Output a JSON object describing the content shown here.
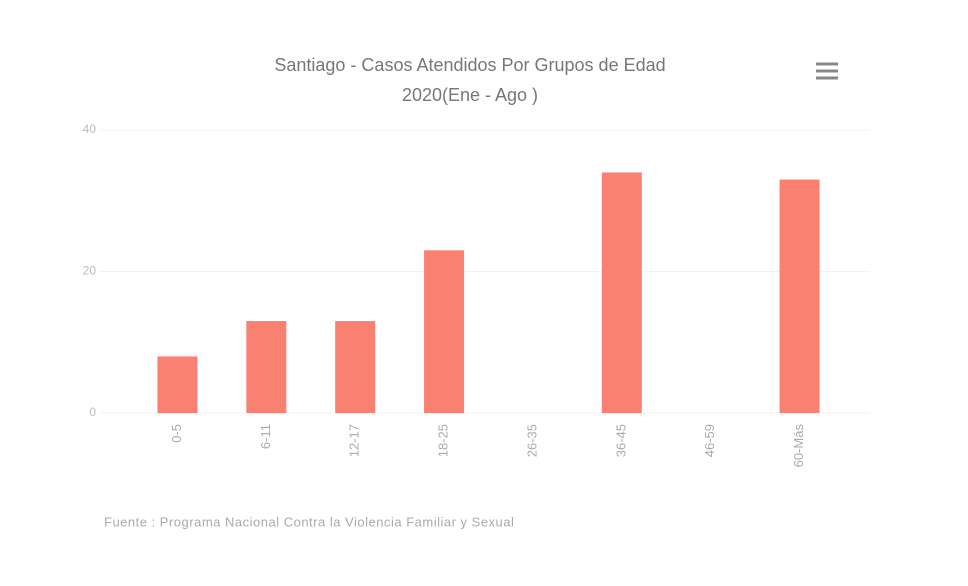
{
  "chart_data": {
    "type": "bar",
    "title": "Santiago - Casos Atendidos Por Grupos de Edad",
    "subtitle": "2020(Ene - Ago )",
    "categories": [
      "0-5",
      "6-11",
      "12-17",
      "18-25",
      "26-35",
      "36-45",
      "46-59",
      "60-Más"
    ],
    "values": [
      8,
      13,
      13,
      23,
      0,
      34,
      0,
      33
    ],
    "color": "#fa8072",
    "ylim": [
      0,
      40
    ],
    "yticks": [
      0,
      20,
      40
    ],
    "grid": true,
    "credits": "Fuente : Programa Nacional Contra la Violencia Familiar y Sexual"
  }
}
